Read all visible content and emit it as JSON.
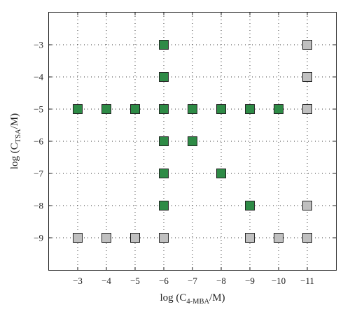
{
  "chart_data": {
    "type": "scatter",
    "title": "",
    "xlabel": {
      "prefix": "log (C",
      "sub": "4-MBA",
      "suffix": "/M)"
    },
    "ylabel": {
      "prefix": "log (C",
      "sub": "TSA",
      "suffix": "/M)"
    },
    "x_ticks": [
      -3,
      -4,
      -5,
      -6,
      -7,
      -8,
      -9,
      -10,
      -11
    ],
    "y_ticks": [
      -3,
      -4,
      -5,
      -6,
      -7,
      -8,
      -9
    ],
    "x_tick_labels": [
      "−3",
      "−4",
      "−5",
      "−6",
      "−7",
      "−8",
      "−9",
      "−10",
      "−11"
    ],
    "y_tick_labels": [
      "−3",
      "−4",
      "−5",
      "−6",
      "−7",
      "−8",
      "−9"
    ],
    "xlim": [
      -2,
      -12
    ],
    "ylim": [
      -10,
      -2
    ],
    "x_reversed": true,
    "grid": true,
    "marker": "square",
    "series": [
      {
        "color": "#2e8b46",
        "points": [
          [
            -6,
            -3
          ],
          [
            -6,
            -4
          ],
          [
            -3,
            -5
          ],
          [
            -4,
            -5
          ],
          [
            -5,
            -5
          ],
          [
            -6,
            -5
          ],
          [
            -7,
            -5
          ],
          [
            -8,
            -5
          ],
          [
            -9,
            -5
          ],
          [
            -10,
            -5
          ],
          [
            -6,
            -6
          ],
          [
            -7,
            -6
          ],
          [
            -6,
            -7
          ],
          [
            -8,
            -7
          ],
          [
            -6,
            -8
          ],
          [
            -9,
            -8
          ]
        ]
      },
      {
        "color": "#c0c0c0",
        "points": [
          [
            -11,
            -3
          ],
          [
            -11,
            -4
          ],
          [
            -11,
            -5
          ],
          [
            -11,
            -8
          ],
          [
            -3,
            -9
          ],
          [
            -4,
            -9
          ],
          [
            -5,
            -9
          ],
          [
            -6,
            -9
          ],
          [
            -9,
            -9
          ],
          [
            -10,
            -9
          ],
          [
            -11,
            -9
          ]
        ]
      }
    ]
  }
}
